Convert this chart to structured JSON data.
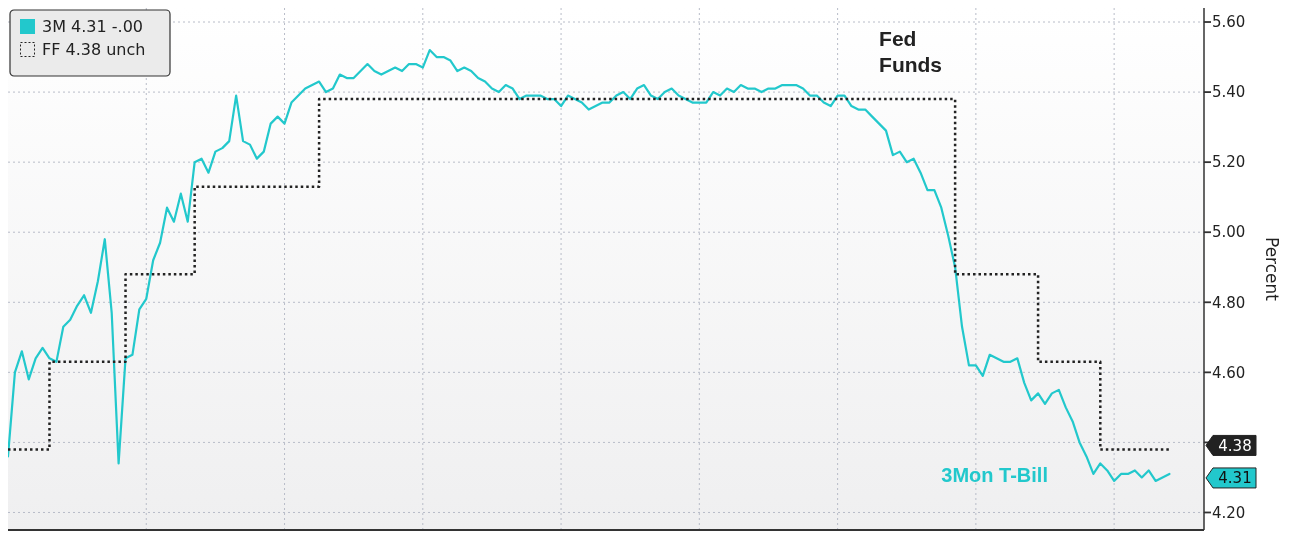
{
  "chart_data": {
    "type": "line",
    "ylabel": "Percent",
    "legend": "top left",
    "grid": true,
    "categories": [
      null,
      null,
      null,
      null,
      null,
      null,
      null,
      null,
      null,
      null,
      null,
      null,
      null,
      null,
      null,
      null,
      null,
      null,
      null,
      null,
      null,
      null,
      null,
      null,
      null,
      null,
      null,
      null,
      null,
      null,
      null,
      null,
      null,
      null,
      null,
      null,
      null,
      null,
      null,
      null,
      null,
      null,
      null,
      null,
      null,
      null,
      null,
      null,
      null,
      null,
      null,
      null,
      null,
      null,
      null,
      null,
      null,
      null,
      null,
      null,
      null,
      null,
      null,
      null,
      null,
      null,
      null,
      null,
      null,
      null,
      null,
      null,
      null,
      null,
      null,
      null,
      null,
      null,
      null,
      null,
      null,
      null,
      null,
      null,
      null,
      null,
      null,
      null,
      null,
      null,
      null,
      null,
      null,
      null,
      null,
      null,
      null,
      null,
      null,
      null,
      null,
      null,
      null,
      null,
      null,
      null,
      null,
      null,
      null,
      null,
      null,
      null,
      null,
      null,
      null,
      null,
      null,
      null,
      null,
      null,
      null,
      null,
      null,
      null,
      null,
      null,
      null,
      null,
      null,
      null,
      null,
      null,
      null,
      null,
      null,
      null,
      null,
      null,
      null,
      null,
      null,
      null,
      null,
      null,
      null,
      null,
      null,
      null,
      null,
      null,
      null,
      null,
      null,
      null,
      null,
      null,
      null,
      null,
      null,
      null,
      null,
      null,
      null,
      null,
      null,
      null,
      null,
      null,
      null
    ],
    "series": [
      {
        "name": "3M 4.31 -.00",
        "color": "#22c8cc",
        "line_style": "solid",
        "values": [
          4.36,
          4.6,
          4.66,
          4.58,
          4.64,
          4.67,
          4.64,
          4.63,
          4.73,
          4.75,
          4.79,
          4.82,
          4.77,
          4.86,
          4.98,
          4.77,
          4.34,
          4.64,
          4.65,
          4.78,
          4.81,
          4.92,
          4.97,
          5.07,
          5.03,
          5.11,
          5.03,
          5.2,
          5.21,
          5.17,
          5.23,
          5.24,
          5.26,
          5.39,
          5.26,
          5.25,
          5.21,
          5.23,
          5.31,
          5.33,
          5.31,
          5.37,
          5.39,
          5.41,
          5.42,
          5.43,
          5.4,
          5.41,
          5.45,
          5.44,
          5.44,
          5.46,
          5.48,
          5.46,
          5.45,
          5.46,
          5.47,
          5.46,
          5.48,
          5.48,
          5.47,
          5.52,
          5.5,
          5.5,
          5.49,
          5.46,
          5.47,
          5.46,
          5.44,
          5.43,
          5.41,
          5.4,
          5.42,
          5.41,
          5.38,
          5.39,
          5.39,
          5.39,
          5.38,
          5.38,
          5.36,
          5.39,
          5.38,
          5.37,
          5.35,
          5.36,
          5.37,
          5.37,
          5.39,
          5.4,
          5.38,
          5.41,
          5.42,
          5.39,
          5.38,
          5.4,
          5.41,
          5.39,
          5.38,
          5.37,
          5.37,
          5.37,
          5.4,
          5.39,
          5.41,
          5.4,
          5.42,
          5.41,
          5.41,
          5.4,
          5.41,
          5.41,
          5.42,
          5.42,
          5.42,
          5.41,
          5.39,
          5.39,
          5.37,
          5.36,
          5.39,
          5.39,
          5.36,
          5.35,
          5.35,
          5.33,
          5.31,
          5.29,
          5.22,
          5.23,
          5.2,
          5.21,
          5.17,
          5.12,
          5.12,
          5.07,
          4.99,
          4.9,
          4.73,
          4.62,
          4.62,
          4.59,
          4.65,
          4.64,
          4.63,
          4.63,
          4.64,
          4.57,
          4.52,
          4.54,
          4.51,
          4.54,
          4.55,
          4.5,
          4.46,
          4.4,
          4.36,
          4.31,
          4.34,
          4.32,
          4.29,
          4.31,
          4.31,
          4.32,
          4.3,
          4.32,
          4.29,
          4.3,
          4.31
        ]
      },
      {
        "name": "FF 4.38 unch",
        "type": "step",
        "color": "#222222",
        "line_style": "dotted",
        "values": [
          4.38,
          4.38,
          4.38,
          4.38,
          4.38,
          4.38,
          4.63,
          4.63,
          4.63,
          4.63,
          4.63,
          4.63,
          4.63,
          4.63,
          4.63,
          4.63,
          4.63,
          4.88,
          4.88,
          4.88,
          4.88,
          4.88,
          4.88,
          4.88,
          4.88,
          4.88,
          4.88,
          5.13,
          5.13,
          5.13,
          5.13,
          5.13,
          5.13,
          5.13,
          5.13,
          5.13,
          5.13,
          5.13,
          5.13,
          5.13,
          5.13,
          5.13,
          5.13,
          5.13,
          5.13,
          5.38,
          5.38,
          5.38,
          5.38,
          5.38,
          5.38,
          5.38,
          5.38,
          5.38,
          5.38,
          5.38,
          5.38,
          5.38,
          5.38,
          5.38,
          5.38,
          5.38,
          5.38,
          5.38,
          5.38,
          5.38,
          5.38,
          5.38,
          5.38,
          5.38,
          5.38,
          5.38,
          5.38,
          5.38,
          5.38,
          5.38,
          5.38,
          5.38,
          5.38,
          5.38,
          5.38,
          5.38,
          5.38,
          5.38,
          5.38,
          5.38,
          5.38,
          5.38,
          5.38,
          5.38,
          5.38,
          5.38,
          5.38,
          5.38,
          5.38,
          5.38,
          5.38,
          5.38,
          5.38,
          5.38,
          5.38,
          5.38,
          5.38,
          5.38,
          5.38,
          5.38,
          5.38,
          5.38,
          5.38,
          5.38,
          5.38,
          5.38,
          5.38,
          5.38,
          5.38,
          5.38,
          5.38,
          5.38,
          5.38,
          5.38,
          5.38,
          5.38,
          5.38,
          5.38,
          5.38,
          5.38,
          5.38,
          5.38,
          5.38,
          5.38,
          5.38,
          5.38,
          5.38,
          5.38,
          5.38,
          5.38,
          5.38,
          4.88,
          4.88,
          4.88,
          4.88,
          4.88,
          4.88,
          4.88,
          4.88,
          4.88,
          4.88,
          4.88,
          4.88,
          4.63,
          4.63,
          4.63,
          4.63,
          4.63,
          4.63,
          4.63,
          4.63,
          4.63,
          4.38,
          4.38,
          4.38,
          4.38,
          4.38,
          4.38,
          4.38,
          4.38,
          4.38,
          4.38,
          4.38
        ]
      }
    ],
    "ylim": [
      4.15,
      5.64
    ],
    "yticks": [
      {
        "value": 4.2,
        "label": "4.20"
      },
      {
        "value": 4.4,
        "label": null
      },
      {
        "value": 4.6,
        "label": "4.60"
      },
      {
        "value": 4.8,
        "label": "4.80"
      },
      {
        "value": 5.0,
        "label": "5.00"
      },
      {
        "value": 5.2,
        "label": "5.20"
      },
      {
        "value": 5.4,
        "label": "5.40"
      },
      {
        "value": 5.6,
        "label": "5.60"
      }
    ],
    "annotations": [
      "Fed Funds",
      "3Mon T-Bill",
      "4.38",
      "4.31"
    ]
  }
}
